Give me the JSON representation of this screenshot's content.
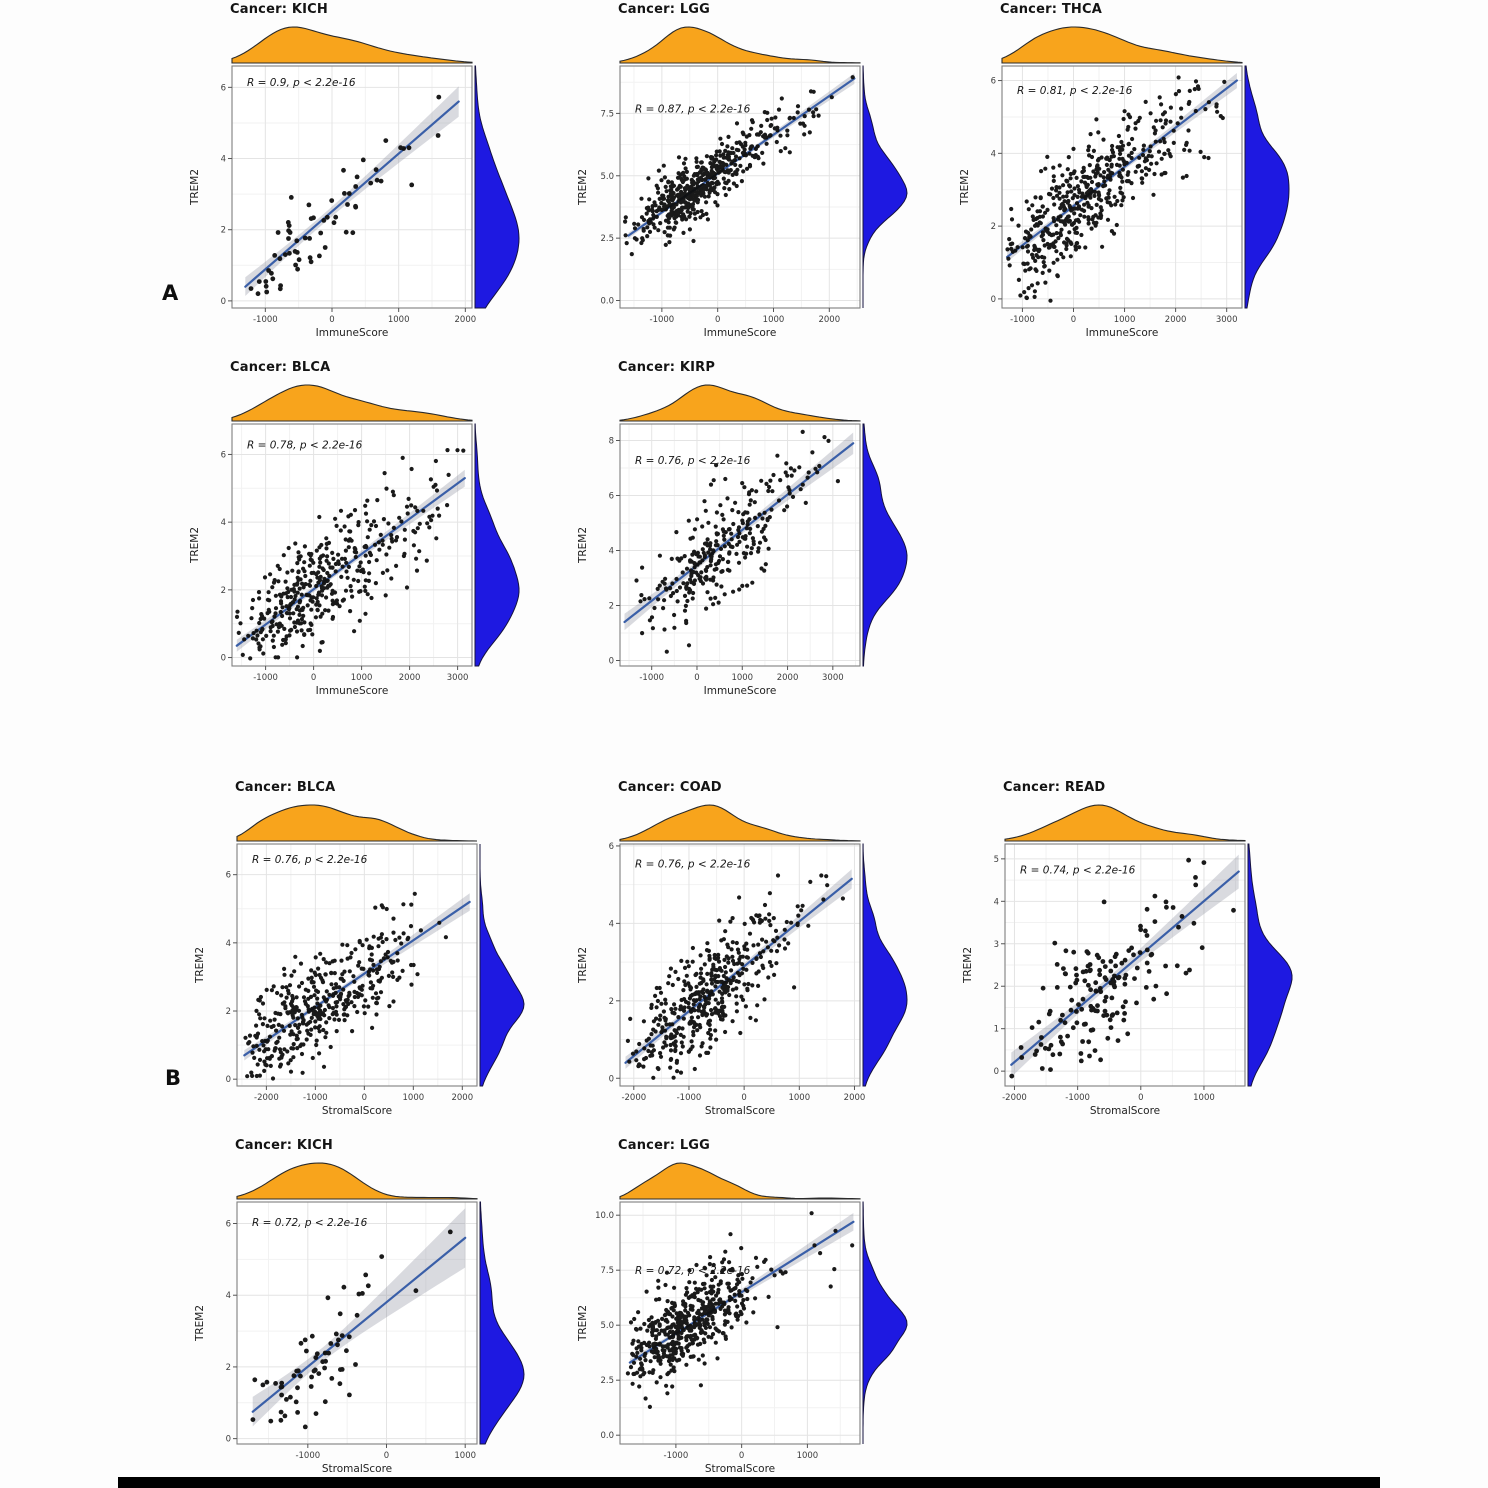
{
  "figure": {
    "panel_labels": [
      "A",
      "B"
    ],
    "gene": "TREM2",
    "x_variables": [
      "ImmuneScore",
      "StromalScore"
    ]
  },
  "style": {
    "marginal_top_fill": "#F8A41C",
    "marginal_top_stroke": "#2b2b2b",
    "marginal_right_fill": "#1E19E1",
    "marginal_right_stroke": "#15123f",
    "point_color": "#0e0e0e",
    "line_color": "#3A5FA8",
    "band_color": "rgba(128,134,150,0.30)",
    "grid_major": "#e4e4e4",
    "grid_minor": "#f2f2f2",
    "panel_border": "#7f7f7f",
    "panel_bg": "#ffffff",
    "tick_color": "#555555",
    "tick_label_color": "#3d3d3d",
    "axis_label_color": "#1f1f1f",
    "annotation_color": "#161616"
  },
  "chart_data": [
    {
      "id": 0,
      "panel": "A",
      "row": 0,
      "col": 0,
      "type": "scatter",
      "title": "Cancer: KICH",
      "annotation": "R = 0.9, p < 2.2e-16",
      "r": 0.9,
      "p_label": "p < 2.2e-16",
      "xlabel": "ImmuneScore",
      "ylabel": "TREM2",
      "xlim": [
        -1500,
        2100
      ],
      "ylim": [
        -0.2,
        6.6
      ],
      "xticks": {
        "values": [
          -1000,
          0,
          1000,
          2000
        ],
        "labels": [
          "-1000",
          "0",
          "1000",
          "2000"
        ]
      },
      "yticks": {
        "values": [
          0,
          2,
          4,
          6
        ],
        "labels": [
          "0",
          "2",
          "4",
          "6"
        ]
      },
      "n_points": 65,
      "x_mixture": [
        {
          "w": 0.9,
          "mean": -350,
          "sd": 600
        },
        {
          "w": 0.1,
          "mean": 1350,
          "sd": 320
        }
      ],
      "line": {
        "x1": -1300,
        "y1": 0.4,
        "x2": 1900,
        "y2": 5.6
      },
      "ann_frac": 0.066,
      "seed": 101
    },
    {
      "id": 1,
      "panel": "A",
      "row": 0,
      "col": 1,
      "type": "scatter",
      "title": "Cancer: LGG",
      "annotation": "R = 0.87, p < 2.2e-16",
      "r": 0.87,
      "p_label": "p < 2.2e-16",
      "xlabel": "ImmuneScore",
      "ylabel": "TREM2",
      "xlim": [
        -1750,
        2550
      ],
      "ylim": [
        -0.3,
        9.4
      ],
      "xticks": {
        "values": [
          -1000,
          0,
          1000,
          2000
        ],
        "labels": [
          "-1000",
          "0",
          "1000",
          "2000"
        ]
      },
      "yticks": {
        "values": [
          0,
          2.5,
          5,
          7.5
        ],
        "labels": [
          "0.0",
          "2.5",
          "5.0",
          "7.5"
        ]
      },
      "n_points": 520,
      "x_mixture": [
        {
          "w": 0.85,
          "mean": -450,
          "sd": 550
        },
        {
          "w": 0.15,
          "mean": 800,
          "sd": 600
        }
      ],
      "line": {
        "x1": -1600,
        "y1": 2.6,
        "x2": 2450,
        "y2": 8.9
      },
      "ann_frac": 0.175,
      "seed": 102
    },
    {
      "id": 2,
      "panel": "A",
      "row": 0,
      "col": 2,
      "type": "scatter",
      "title": "Cancer: THCA",
      "annotation": "R = 0.81, p < 2.2e-16",
      "r": 0.81,
      "p_label": "p < 2.2e-16",
      "xlabel": "ImmuneScore",
      "ylabel": "TREM2",
      "xlim": [
        -1400,
        3300
      ],
      "ylim": [
        -0.25,
        6.4
      ],
      "xticks": {
        "values": [
          -1000,
          0,
          1000,
          2000,
          3000
        ],
        "labels": [
          "-1000",
          "0",
          "1000",
          "2000",
          "3000"
        ]
      },
      "yticks": {
        "values": [
          0,
          2,
          4,
          6
        ],
        "labels": [
          "0",
          "2",
          "4",
          "6"
        ]
      },
      "n_points": 500,
      "x_mixture": [
        {
          "w": 0.8,
          "mean": 0,
          "sd": 700
        },
        {
          "w": 0.2,
          "mean": 1700,
          "sd": 700
        }
      ],
      "line": {
        "x1": -1300,
        "y1": 1.15,
        "x2": 3200,
        "y2": 6.0
      },
      "ann_frac": 0.1,
      "seed": 103
    },
    {
      "id": 3,
      "panel": "A",
      "row": 1,
      "col": 0,
      "type": "scatter",
      "title": "Cancer: BLCA",
      "annotation": "R = 0.78, p < 2.2e-16",
      "r": 0.78,
      "p_label": "p < 2.2e-16",
      "xlabel": "ImmuneScore",
      "ylabel": "TREM2",
      "xlim": [
        -1700,
        3300
      ],
      "ylim": [
        -0.25,
        6.9
      ],
      "xticks": {
        "values": [
          -1000,
          0,
          1000,
          2000,
          3000
        ],
        "labels": [
          "-1000",
          "0",
          "1000",
          "2000",
          "3000"
        ]
      },
      "yticks": {
        "values": [
          0,
          2,
          4,
          6
        ],
        "labels": [
          "0",
          "2",
          "4",
          "6"
        ]
      },
      "n_points": 410,
      "x_mixture": [
        {
          "w": 0.75,
          "mean": -200,
          "sd": 750
        },
        {
          "w": 0.25,
          "mean": 1600,
          "sd": 700
        }
      ],
      "line": {
        "x1": -1600,
        "y1": 0.35,
        "x2": 3150,
        "y2": 5.3
      },
      "ann_frac": 0.084,
      "seed": 104
    },
    {
      "id": 4,
      "panel": "A",
      "row": 1,
      "col": 1,
      "type": "scatter",
      "title": "Cancer: KIRP",
      "annotation": "R = 0.76, p < 2.2e-16",
      "r": 0.76,
      "p_label": "p < 2.2e-16",
      "xlabel": "ImmuneScore",
      "ylabel": "TREM2",
      "xlim": [
        -1700,
        3600
      ],
      "ylim": [
        -0.2,
        8.6
      ],
      "xticks": {
        "values": [
          -1000,
          0,
          1000,
          2000,
          3000
        ],
        "labels": [
          "-1000",
          "0",
          "1000",
          "2000",
          "3000"
        ]
      },
      "yticks": {
        "values": [
          0,
          2,
          4,
          6,
          8
        ],
        "labels": [
          "0",
          "2",
          "4",
          "6",
          "8"
        ]
      },
      "n_points": 290,
      "x_mixture": [
        {
          "w": 0.9,
          "mean": 400,
          "sd": 750
        },
        {
          "w": 0.1,
          "mean": 2200,
          "sd": 600
        }
      ],
      "line": {
        "x1": -1600,
        "y1": 1.4,
        "x2": 3450,
        "y2": 7.9
      },
      "ann_frac": 0.148,
      "seed": 105
    },
    {
      "id": 5,
      "panel": "B",
      "row": 2,
      "col": 0,
      "type": "scatter",
      "title": "Cancer: BLCA",
      "annotation": "R = 0.76, p < 2.2e-16",
      "r": 0.76,
      "p_label": "p < 2.2e-16",
      "xlabel": "StromalScore",
      "ylabel": "TREM2",
      "xlim": [
        -2600,
        2300
      ],
      "ylim": [
        -0.2,
        6.9
      ],
      "xticks": {
        "values": [
          -2000,
          -1000,
          0,
          1000,
          2000
        ],
        "labels": [
          "-2000",
          "-1000",
          "0",
          "1000",
          "2000"
        ]
      },
      "yticks": {
        "values": [
          0,
          2,
          4,
          6
        ],
        "labels": [
          "0",
          "2",
          "4",
          "6"
        ]
      },
      "n_points": 410,
      "x_mixture": [
        {
          "w": 0.5,
          "mean": -1400,
          "sd": 550
        },
        {
          "w": 0.5,
          "mean": -300,
          "sd": 800
        }
      ],
      "line": {
        "x1": -2450,
        "y1": 0.7,
        "x2": 2150,
        "y2": 5.2
      },
      "ann_frac": 0.063,
      "seed": 106
    },
    {
      "id": 6,
      "panel": "B",
      "row": 2,
      "col": 1,
      "type": "scatter",
      "title": "Cancer: COAD",
      "annotation": "R = 0.76, p < 2.2e-16",
      "r": 0.76,
      "p_label": "p < 2.2e-16",
      "xlabel": "StromalScore",
      "ylabel": "TREM2",
      "xlim": [
        -2250,
        2100
      ],
      "ylim": [
        -0.2,
        6.05
      ],
      "xticks": {
        "values": [
          -2000,
          -1000,
          0,
          1000,
          2000
        ],
        "labels": [
          "-2000",
          "-1000",
          "0",
          "1000",
          "2000"
        ]
      },
      "yticks": {
        "values": [
          0,
          2,
          4,
          6
        ],
        "labels": [
          "0",
          "2",
          "4",
          "6"
        ]
      },
      "n_points": 450,
      "x_mixture": [
        {
          "w": 0.9,
          "mean": -700,
          "sd": 600
        },
        {
          "w": 0.1,
          "mean": 700,
          "sd": 500
        }
      ],
      "line": {
        "x1": -2150,
        "y1": 0.4,
        "x2": 1950,
        "y2": 5.15
      },
      "ann_frac": 0.08,
      "seed": 107
    },
    {
      "id": 7,
      "panel": "B",
      "row": 2,
      "col": 2,
      "type": "scatter",
      "title": "Cancer: READ",
      "annotation": "R = 0.74, p < 2.2e-16",
      "r": 0.74,
      "p_label": "p < 2.2e-16",
      "xlabel": "StromalScore",
      "ylabel": "TREM2",
      "xlim": [
        -2150,
        1650
      ],
      "ylim": [
        -0.35,
        5.35
      ],
      "xticks": {
        "values": [
          -2000,
          -1000,
          0,
          1000
        ],
        "labels": [
          "-2000",
          "-1000",
          "0",
          "1000"
        ]
      },
      "yticks": {
        "values": [
          0,
          1,
          2,
          3,
          4,
          5
        ],
        "labels": [
          "0",
          "1",
          "2",
          "3",
          "4",
          "5"
        ]
      },
      "n_points": 165,
      "x_mixture": [
        {
          "w": 0.9,
          "mean": -700,
          "sd": 500
        },
        {
          "w": 0.1,
          "mean": 500,
          "sd": 400
        }
      ],
      "line": {
        "x1": -2050,
        "y1": 0.15,
        "x2": 1550,
        "y2": 4.7
      },
      "ann_frac": 0.105,
      "seed": 108
    },
    {
      "id": 8,
      "panel": "B",
      "row": 3,
      "col": 0,
      "type": "scatter",
      "title": "Cancer: KICH",
      "annotation": "R = 0.72, p < 2.2e-16",
      "r": 0.72,
      "p_label": "p < 2.2e-16",
      "xlabel": "StromalScore",
      "ylabel": "TREM2",
      "xlim": [
        -1900,
        1150
      ],
      "ylim": [
        -0.15,
        6.6
      ],
      "xticks": {
        "values": [
          -1000,
          0,
          1000
        ],
        "labels": [
          "-1000",
          "0",
          "1000"
        ]
      },
      "yticks": {
        "values": [
          0,
          2,
          4,
          6
        ],
        "labels": [
          "0",
          "2",
          "4",
          "6"
        ]
      },
      "n_points": 65,
      "x_mixture": [
        {
          "w": 0.9,
          "mean": -900,
          "sd": 380
        },
        {
          "w": 0.1,
          "mean": 500,
          "sd": 250
        }
      ],
      "line": {
        "x1": -1700,
        "y1": 0.75,
        "x2": 1000,
        "y2": 5.6
      },
      "ann_frac": 0.082,
      "seed": 109
    },
    {
      "id": 9,
      "panel": "B",
      "row": 3,
      "col": 1,
      "type": "scatter",
      "title": "Cancer: LGG",
      "annotation": "R = 0.72, p < 2.2e-16",
      "r": 0.72,
      "p_label": "p < 2.2e-16",
      "xlabel": "StromalScore",
      "ylabel": "TREM2",
      "xlim": [
        -1850,
        1800
      ],
      "ylim": [
        -0.4,
        10.6
      ],
      "xticks": {
        "values": [
          -1000,
          0,
          1000
        ],
        "labels": [
          "-1000",
          "0",
          "1000"
        ]
      },
      "yticks": {
        "values": [
          0,
          2.5,
          5,
          7.5,
          10
        ],
        "labels": [
          "0.0",
          "2.5",
          "5.0",
          "7.5",
          "10.0"
        ]
      },
      "n_points": 520,
      "x_mixture": [
        {
          "w": 0.68,
          "mean": -1050,
          "sd": 350
        },
        {
          "w": 0.3,
          "mean": -400,
          "sd": 420
        },
        {
          "w": 0.02,
          "mean": 1300,
          "sd": 250
        }
      ],
      "line": {
        "x1": -1700,
        "y1": 3.3,
        "x2": 1700,
        "y2": 9.7
      },
      "ann_frac": 0.28,
      "seed": 110
    }
  ]
}
